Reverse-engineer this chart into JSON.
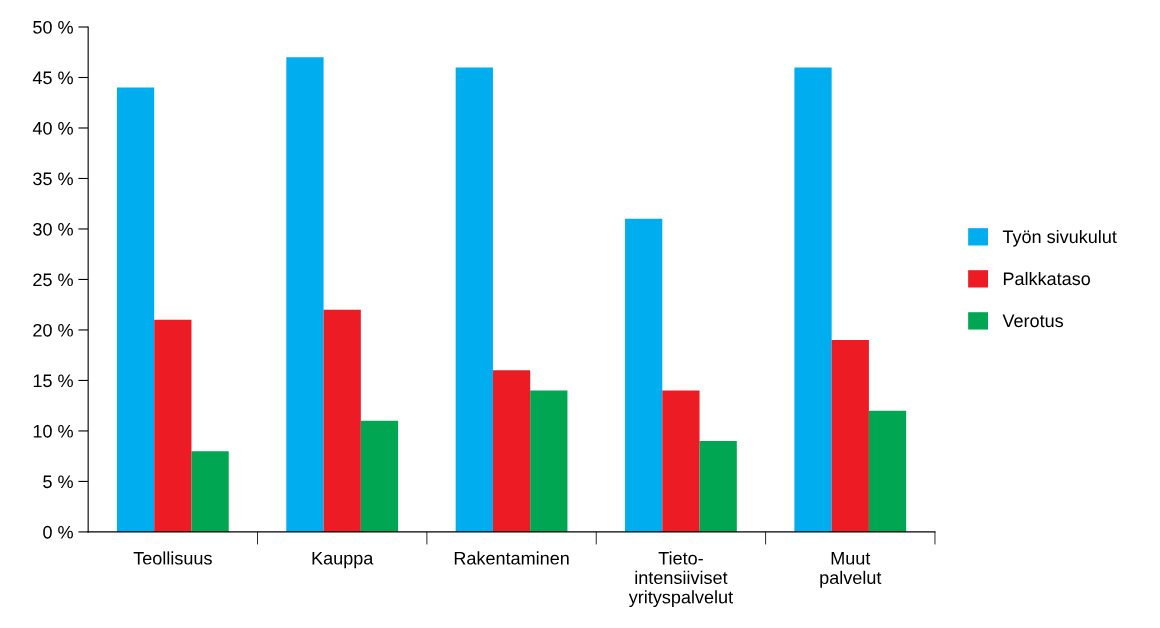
{
  "chart_data": {
    "type": "bar",
    "categories": [
      "Teollisuus",
      "Kauppa",
      "Rakentaminen",
      "Tieto-\nintensiiviset\nyrityspalvelut",
      "Muut\npalvelut"
    ],
    "series": [
      {
        "name": "Työn sivukulut",
        "color": "#00aeef",
        "values": [
          44,
          47,
          46,
          31,
          46
        ]
      },
      {
        "name": "Palkkataso",
        "color": "#ed1c24",
        "values": [
          21,
          22,
          16,
          14,
          19
        ]
      },
      {
        "name": "Verotus",
        "color": "#00a651",
        "values": [
          8,
          11,
          14,
          9,
          12
        ]
      }
    ],
    "ylim": [
      0,
      50
    ],
    "yticks": [
      {
        "value": 0,
        "label": "0 %"
      },
      {
        "value": 5,
        "label": "5 %"
      },
      {
        "value": 10,
        "label": "10 %"
      },
      {
        "value": 15,
        "label": "15 %"
      },
      {
        "value": 20,
        "label": "20 %"
      },
      {
        "value": 25,
        "label": "25 %"
      },
      {
        "value": 30,
        "label": "30 %"
      },
      {
        "value": 35,
        "label": "35 %"
      },
      {
        "value": 40,
        "label": "40 %"
      },
      {
        "value": 45,
        "label": "45 %"
      },
      {
        "value": 50,
        "label": "50 %"
      }
    ],
    "grid": false,
    "legend": "right"
  }
}
